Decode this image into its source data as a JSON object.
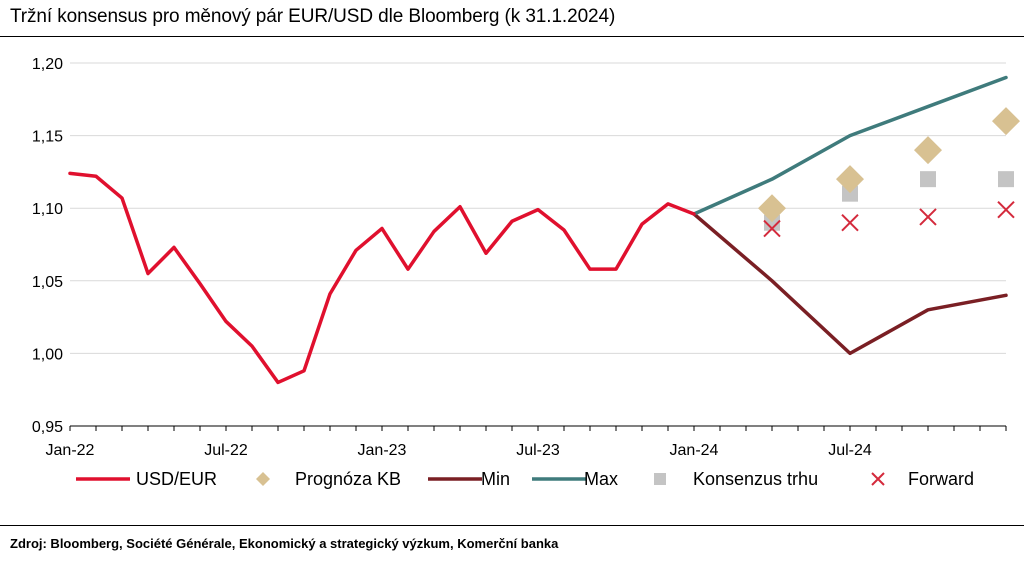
{
  "title": "Tržní konsensus pro měnový pár EUR/USD dle Bloomberg (k 31.1.2024)",
  "source": "Zdroj: Bloomberg, Société Générale, Ekonomický a strategický výzkum, Komerční banka",
  "chart_data": {
    "type": "line",
    "ylim": [
      0.95,
      1.2
    ],
    "yticks": [
      0.95,
      1.0,
      1.05,
      1.1,
      1.15,
      1.2
    ],
    "ytick_labels": [
      "0,95",
      "1,00",
      "1,05",
      "1,10",
      "1,15",
      "1,20"
    ],
    "x_range": [
      0,
      36
    ],
    "xticks": [
      0,
      6,
      12,
      18,
      24,
      30
    ],
    "xtick_labels": [
      "Jan-22",
      "Jul-22",
      "Jan-23",
      "Jul-23",
      "Jan-24",
      "Jul-24"
    ],
    "grid": "horizontal",
    "legend_position": "bottom",
    "colors": {
      "usd_eur": "#e0102e",
      "prognoza": "#d8c192",
      "min": "#7a1f24",
      "max": "#3f7b7c",
      "konsenzus": "#c4c4c4",
      "forward": "#d42a3c"
    },
    "series": [
      {
        "name": "USD/EUR",
        "key": "usd_eur",
        "kind": "line",
        "x": [
          0,
          1,
          2,
          3,
          4,
          5,
          6,
          7,
          8,
          9,
          10,
          11,
          12,
          13,
          14,
          15,
          16,
          17,
          18,
          19,
          20,
          21,
          22,
          23,
          24
        ],
        "y": [
          1.124,
          1.122,
          1.107,
          1.055,
          1.073,
          1.048,
          1.022,
          1.005,
          0.98,
          0.988,
          1.041,
          1.071,
          1.086,
          1.058,
          1.084,
          1.101,
          1.069,
          1.091,
          1.099,
          1.085,
          1.058,
          1.058,
          1.089,
          1.103,
          1.096
        ]
      },
      {
        "name": "Prognóza KB",
        "key": "prognoza",
        "kind": "diamond",
        "x": [
          27,
          30,
          33,
          36
        ],
        "y": [
          1.1,
          1.12,
          1.14,
          1.16
        ]
      },
      {
        "name": "Min",
        "key": "min",
        "kind": "line",
        "x": [
          24,
          27,
          30,
          33,
          36
        ],
        "y": [
          1.096,
          1.05,
          1.0,
          1.03,
          1.04
        ]
      },
      {
        "name": "Max",
        "key": "max",
        "kind": "line",
        "x": [
          24,
          27,
          30,
          33,
          36
        ],
        "y": [
          1.096,
          1.12,
          1.15,
          1.17,
          1.19
        ]
      },
      {
        "name": "Konsenzus  trhu",
        "key": "konsenzus",
        "kind": "square",
        "x": [
          27,
          30,
          33,
          36
        ],
        "y": [
          1.09,
          1.11,
          1.12,
          1.12
        ]
      },
      {
        "name": "Forward",
        "key": "forward",
        "kind": "cross",
        "x": [
          27,
          30,
          33,
          36
        ],
        "y": [
          1.086,
          1.09,
          1.094,
          1.099
        ]
      }
    ]
  }
}
